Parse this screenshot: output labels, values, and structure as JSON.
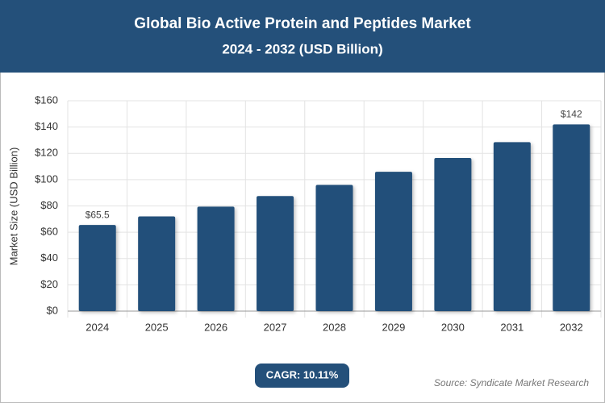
{
  "chart_data": {
    "type": "bar",
    "title": "Global Bio Active Protein and Peptides Market",
    "subtitle": "2024 - 2032 (USD Billion)",
    "y_label": "Market Size (USD Billion)",
    "categories": [
      "2024",
      "2025",
      "2026",
      "2027",
      "2028",
      "2029",
      "2030",
      "2031",
      "2032"
    ],
    "values": [
      65.5,
      72,
      79.5,
      87.5,
      96,
      106,
      116.5,
      128.5,
      142
    ],
    "value_labels": [
      "$65.5",
      null,
      null,
      null,
      null,
      null,
      null,
      null,
      "$142"
    ],
    "color": "#24507a",
    "ylim": [
      0,
      160
    ],
    "yticks": [
      {
        "value": 0,
        "label": "$0"
      },
      {
        "value": 20,
        "label": "$20"
      },
      {
        "value": 40,
        "label": "$40"
      },
      {
        "value": 60,
        "label": "$60"
      },
      {
        "value": 80,
        "label": "$80"
      },
      {
        "value": 100,
        "label": "$100"
      },
      {
        "value": 120,
        "label": "$120"
      },
      {
        "value": 140,
        "label": "$140"
      },
      {
        "value": 160,
        "label": "$160"
      }
    ],
    "grid": true,
    "cagr": "CAGR: 10.11%",
    "source": "Source: Syndicate Market Research"
  }
}
